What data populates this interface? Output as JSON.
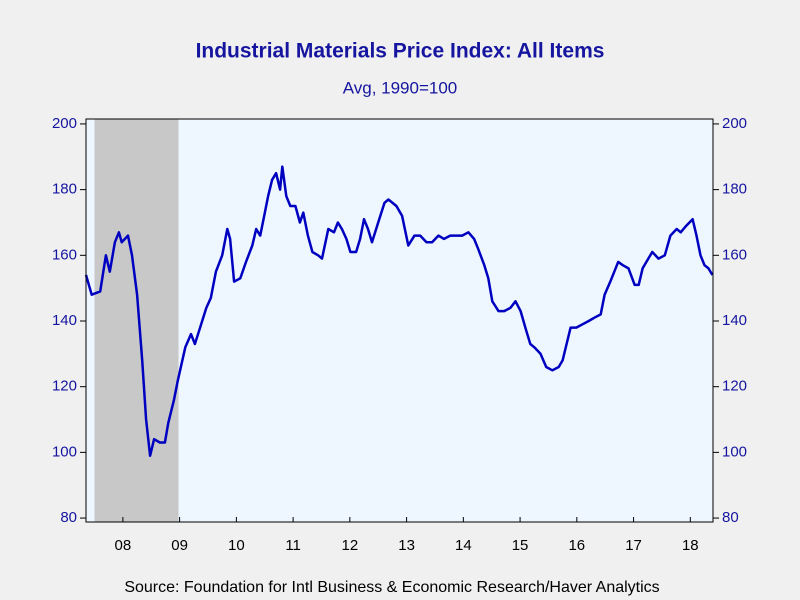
{
  "chart_data": {
    "type": "line",
    "title": "Industrial Materials Price Index: All Items",
    "subtitle": "Avg, 1990=100",
    "source": "Source:  Foundation for Intl Business & Economic Research/Haver Analytics",
    "xlim": [
      2007.85,
      2018.9
    ],
    "ylim": [
      78.8,
      201.5
    ],
    "yticks": [
      80,
      100,
      120,
      140,
      160,
      180,
      200
    ],
    "xticks": [
      {
        "value": 2008.5,
        "label": "08"
      },
      {
        "value": 2009.5,
        "label": "09"
      },
      {
        "value": 2010.5,
        "label": "10"
      },
      {
        "value": 2011.5,
        "label": "11"
      },
      {
        "value": 2012.5,
        "label": "12"
      },
      {
        "value": 2013.5,
        "label": "13"
      },
      {
        "value": 2014.5,
        "label": "14"
      },
      {
        "value": 2015.5,
        "label": "15"
      },
      {
        "value": 2016.5,
        "label": "16"
      },
      {
        "value": 2017.5,
        "label": "17"
      },
      {
        "value": 2018.5,
        "label": "18"
      }
    ],
    "shaded": [
      2008.0,
      2009.48
    ],
    "x": [
      2007.85,
      2007.95,
      2008.1,
      2008.2,
      2008.27,
      2008.36,
      2008.43,
      2008.48,
      2008.59,
      2008.66,
      2008.75,
      2008.84,
      2008.91,
      2008.98,
      2009.05,
      2009.15,
      2009.24,
      2009.3,
      2009.4,
      2009.47,
      2009.6,
      2009.7,
      2009.77,
      2009.86,
      2009.97,
      2010.05,
      2010.14,
      2010.25,
      2010.34,
      2010.39,
      2010.46,
      2010.57,
      2010.67,
      2010.78,
      2010.85,
      2010.92,
      2010.99,
      2011.06,
      2011.13,
      2011.2,
      2011.27,
      2011.31,
      2011.38,
      2011.45,
      2011.54,
      2011.62,
      2011.68,
      2011.76,
      2011.84,
      2011.94,
      2012.01,
      2012.12,
      2012.22,
      2012.29,
      2012.36,
      2012.44,
      2012.51,
      2012.61,
      2012.68,
      2012.75,
      2012.82,
      2012.89,
      2013.0,
      2013.11,
      2013.18,
      2013.32,
      2013.42,
      2013.53,
      2013.64,
      2013.74,
      2013.85,
      2013.95,
      2014.06,
      2014.16,
      2014.27,
      2014.38,
      2014.48,
      2014.59,
      2014.69,
      2014.76,
      2014.87,
      2014.94,
      2015.01,
      2015.12,
      2015.22,
      2015.33,
      2015.42,
      2015.51,
      2015.61,
      2015.68,
      2015.75,
      2015.86,
      2015.96,
      2016.07,
      2016.18,
      2016.25,
      2016.32,
      2016.39,
      2016.49,
      2016.6,
      2016.71,
      2016.81,
      2016.92,
      2016.99,
      2017.09,
      2017.16,
      2017.23,
      2017.31,
      2017.41,
      2017.52,
      2017.59,
      2017.66,
      2017.76,
      2017.83,
      2017.94,
      2018.05,
      2018.15,
      2018.26,
      2018.33,
      2018.43,
      2018.54,
      2018.61,
      2018.68,
      2018.75,
      2018.82,
      2018.89
    ],
    "series": [
      {
        "color": "#0000c0",
        "values": [
          154,
          148,
          149,
          160,
          155,
          164,
          167,
          164,
          166,
          160,
          148,
          128,
          110,
          99,
          104,
          103,
          103,
          109,
          116,
          122,
          132,
          136,
          133,
          138,
          144,
          147,
          155,
          160,
          168,
          165,
          152,
          153,
          158,
          163,
          168,
          166,
          172,
          178,
          183,
          185,
          180,
          187,
          178,
          175,
          175,
          170,
          173,
          166,
          161,
          160,
          159,
          168,
          167,
          170,
          168,
          165,
          161,
          161,
          165,
          171,
          168,
          164,
          170,
          176,
          177,
          175,
          172,
          163,
          166,
          166,
          164,
          164,
          166,
          165,
          166,
          166,
          166,
          167,
          165,
          162,
          157,
          153,
          146,
          143,
          143,
          144,
          146,
          143,
          137,
          133,
          132,
          130,
          126,
          125,
          126,
          128,
          133,
          138,
          138,
          139,
          140,
          141,
          142,
          148,
          152,
          155,
          158,
          157,
          156,
          151,
          151,
          156,
          159,
          161,
          159,
          160,
          166,
          168,
          167,
          169,
          171,
          166,
          160,
          157,
          156,
          154
        ]
      }
    ]
  }
}
